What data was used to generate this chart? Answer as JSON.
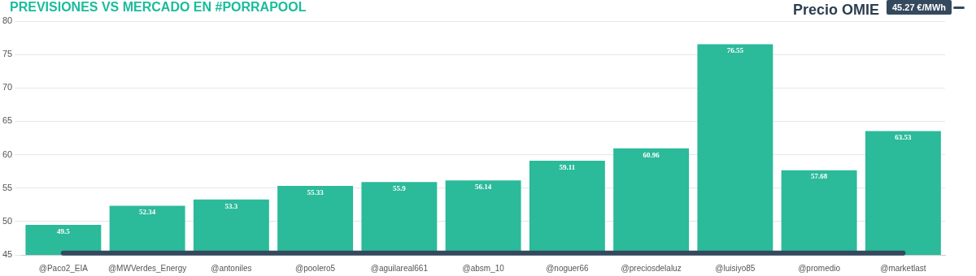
{
  "chart_data": {
    "type": "bar",
    "title": "PREVISIONES VS MERCADO EN #PORRAPOOL",
    "categories": [
      "@Paco2_EIA",
      "@MWVerdes_Energy",
      "@antoniles",
      "@poolero5",
      "@aguilareal661",
      "@absm_10",
      "@noguer66",
      "@preciosdelaluz",
      "@luisiyo85",
      "@promedio",
      "@marketlast"
    ],
    "values": [
      49.5,
      52.34,
      53.3,
      55.33,
      55.9,
      56.14,
      59.11,
      60.96,
      76.55,
      57.68,
      63.53
    ],
    "color": "#2bba9a",
    "ylim": [
      45,
      80
    ],
    "yticks": [
      45,
      50,
      55,
      60,
      65,
      70,
      75,
      80
    ],
    "grid": "y",
    "data_labels": true,
    "annotations": [
      "Precio OMIE"
    ],
    "ref_lines": [
      {
        "axis": "y",
        "value": 45.27,
        "label": "45.27 €/MWh",
        "color": "#34495e"
      }
    ]
  }
}
